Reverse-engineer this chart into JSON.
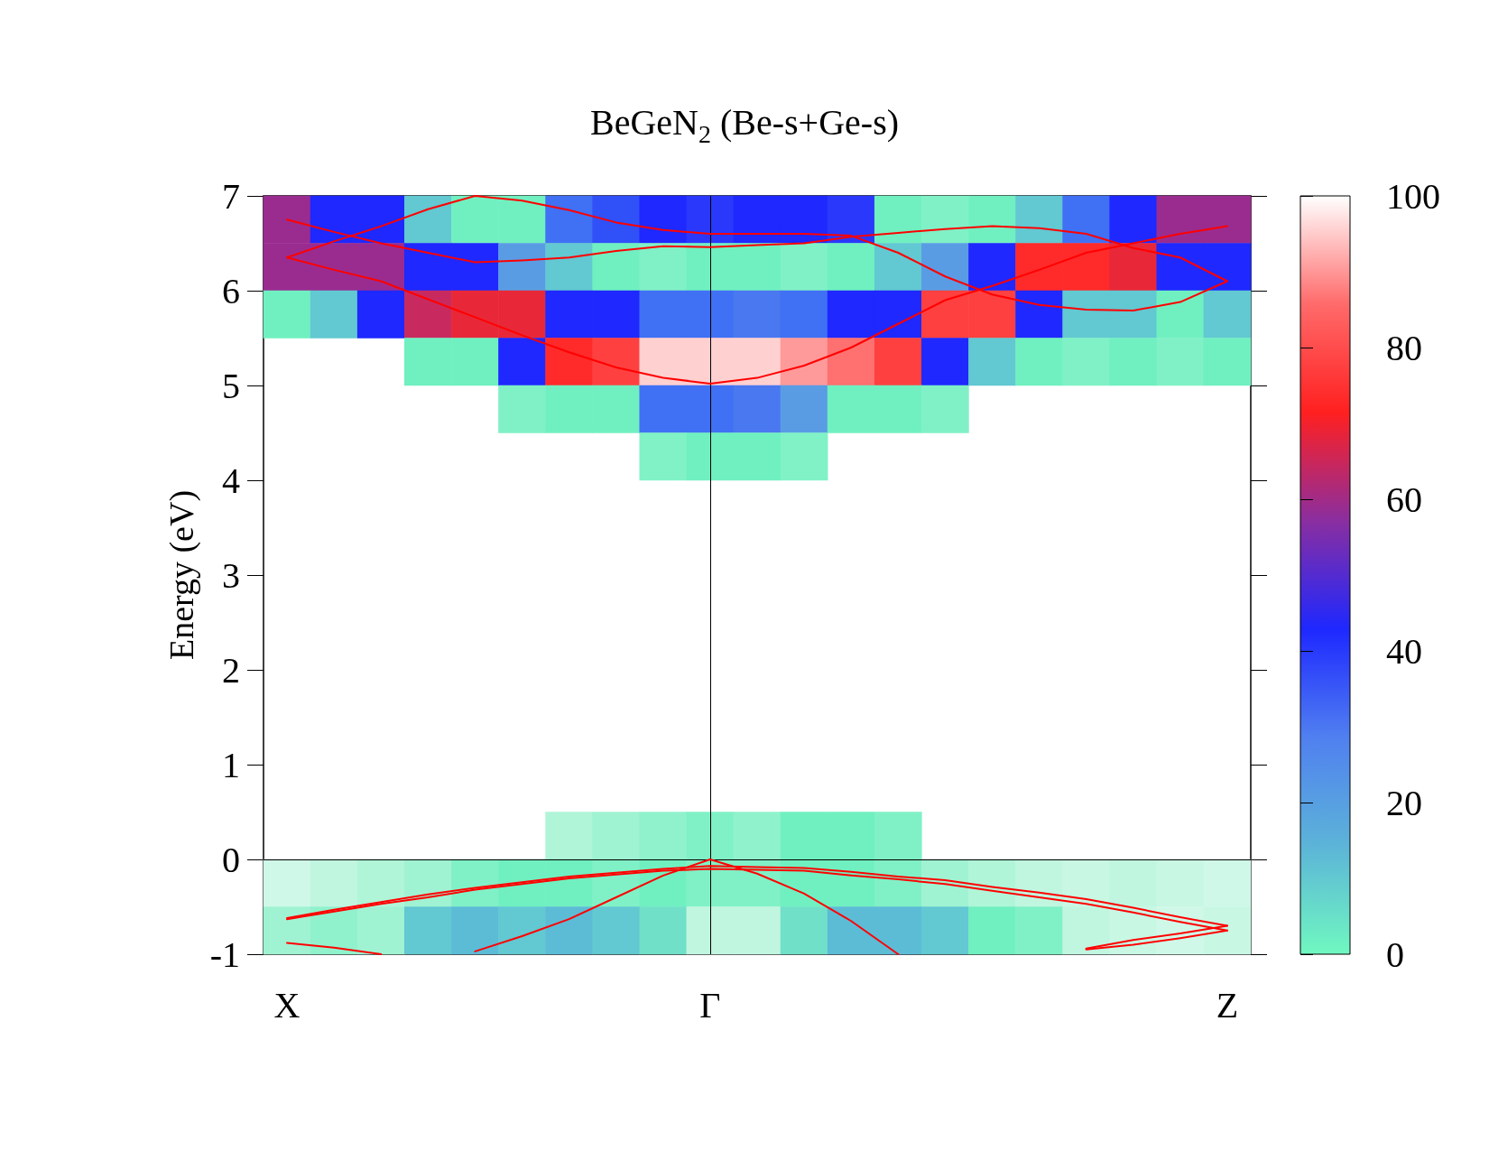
{
  "chart_data": {
    "type": "line",
    "title": "BeGeN$_{2}$ (Be-s+Ge-s)",
    "ylabel": "Energy (eV)",
    "categories": [
      "X",
      null,
      null,
      null,
      null,
      null,
      null,
      null,
      null,
      "Γ",
      null,
      null,
      null,
      null,
      null,
      null,
      null,
      null,
      null,
      null,
      "Z"
    ],
    "ylim": [
      -1,
      7
    ],
    "yticks": [
      -1,
      0,
      1,
      2,
      3,
      4,
      5,
      6,
      7
    ],
    "grid": false,
    "clim": [
      0,
      100
    ],
    "cticks": [
      0,
      20,
      40,
      60,
      80,
      100
    ],
    "ref_lines": [
      {
        "axis": "x",
        "value": "Γ",
        "color": "#000000"
      },
      {
        "axis": "y",
        "value": 0,
        "color": "#000000"
      }
    ],
    "series": [
      {
        "type": "bar",
        "base": [
          6.5,
          6.5,
          6.5,
          6.5,
          6.5,
          6.5,
          6.5,
          6.5,
          6.5,
          6.5,
          6.5,
          6.5,
          6.5,
          6.5,
          6.5,
          6.5,
          6.5,
          6.5,
          6.5,
          6.5,
          6.5
        ],
        "values": [
          0.5,
          0.5,
          0.5,
          0.5,
          0.5,
          0.5,
          0.5,
          0.5,
          0.5,
          0.5,
          0.5,
          0.5,
          0.5,
          0.5,
          0.5,
          0.5,
          0.5,
          0.5,
          0.5,
          0.5,
          0.5
        ],
        "colors": [
          "#9a2c90",
          "#1e28ff",
          "#1e28ff",
          "#62c8d1",
          "#70f0c0",
          "#70f0c0",
          "#4070f4",
          "#3050f8",
          "#1e28ff",
          "#2a38fc",
          "#1e28ff",
          "#1e28ff",
          "#2a38fc",
          "#70f0c0",
          "#80f1c6",
          "#70f0c0",
          "#62c8d1",
          "#4070f4",
          "#1e28ff",
          "#9a2c90",
          "#9a2c90"
        ]
      },
      {
        "type": "bar",
        "base": [
          6,
          6,
          6,
          6,
          6,
          6,
          6,
          6,
          6,
          6,
          6,
          6,
          6,
          6,
          6,
          6,
          6,
          6,
          6,
          6,
          6
        ],
        "values": [
          0.5,
          0.5,
          0.5,
          0.5,
          0.5,
          0.5,
          0.5,
          0.5,
          0.5,
          0.5,
          0.5,
          0.5,
          0.5,
          0.5,
          0.5,
          0.5,
          0.5,
          0.5,
          0.5,
          0.5,
          0.5
        ],
        "colors": [
          "#9a2c90",
          "#9a2c90",
          "#9a2c90",
          "#1e28ff",
          "#1e28ff",
          "#5a9ce4",
          "#62c8d1",
          "#70f0c0",
          "#80f1c6",
          "#70f0c0",
          "#70f0c0",
          "#80f1c6",
          "#70f0c0",
          "#62c8d1",
          "#5a9ce4",
          "#1e28ff",
          "#ff2a2a",
          "#ff2a2a",
          "#e82838",
          "#1e28ff",
          "#1e28ff"
        ]
      },
      {
        "type": "bar",
        "base": [
          5.5,
          5.5,
          5.5,
          5.5,
          5.5,
          5.5,
          5.5,
          5.5,
          5.5,
          5.5,
          5.5,
          5.5,
          5.5,
          5.5,
          5.5,
          5.5,
          5.5,
          5.5,
          5.5,
          5.5,
          5.5
        ],
        "values": [
          0.5,
          0.5,
          0.5,
          0.5,
          0.5,
          0.5,
          0.5,
          0.5,
          0.5,
          0.5,
          0.5,
          0.5,
          0.5,
          0.5,
          0.5,
          0.5,
          0.5,
          0.5,
          0.5,
          0.5,
          0.5
        ],
        "colors": [
          "#70f0c0",
          "#62c8d1",
          "#1e28ff",
          "#c82a60",
          "#e82838",
          "#e82838",
          "#1e28ff",
          "#1e28ff",
          "#4070f4",
          "#4070f4",
          "#4a78f0",
          "#4070f4",
          "#1e28ff",
          "#1e28ff",
          "#ff4040",
          "#ff4040",
          "#1e28ff",
          "#62c8d1",
          "#62c8d1",
          "#70f0c0",
          "#62c8d1"
        ]
      },
      {
        "type": "bar",
        "base": [
          null,
          null,
          null,
          5,
          5,
          5,
          5,
          5,
          5,
          5,
          5,
          5,
          5,
          5,
          5,
          5,
          5,
          5,
          5,
          5,
          5
        ],
        "values": [
          null,
          null,
          null,
          0.5,
          0.5,
          0.5,
          0.5,
          0.5,
          0.5,
          0.5,
          0.5,
          0.5,
          0.5,
          0.5,
          0.5,
          0.5,
          0.5,
          0.5,
          0.5,
          0.5,
          0.5
        ],
        "colors": [
          null,
          null,
          null,
          "#70f0c0",
          "#70f0c0",
          "#1e28ff",
          "#ff2a2a",
          "#ff4040",
          "#ffd0d0",
          "#ffd0d0",
          "#ffd0d0",
          "#ff9a9a",
          "#ff7070",
          "#ff4040",
          "#1e28ff",
          "#62c8d1",
          "#70f0c0",
          "#80f1c6",
          "#70f0c0",
          "#80f1c6",
          "#70f0c0"
        ]
      },
      {
        "type": "bar",
        "base": [
          null,
          null,
          null,
          null,
          null,
          4.5,
          4.5,
          4.5,
          4.5,
          4.5,
          4.5,
          4.5,
          4.5,
          4.5,
          4.5,
          null,
          null,
          null,
          null,
          null,
          null
        ],
        "values": [
          null,
          null,
          null,
          null,
          null,
          0.5,
          0.5,
          0.5,
          0.5,
          0.5,
          0.5,
          0.5,
          0.5,
          0.5,
          0.5,
          null,
          null,
          null,
          null,
          null,
          null
        ],
        "colors": [
          null,
          null,
          null,
          null,
          null,
          "#80f1c6",
          "#70f0c0",
          "#70f0c0",
          "#4070f4",
          "#4070f4",
          "#4a78f0",
          "#5a9ce4",
          "#70f0c0",
          "#70f0c0",
          "#80f1c6",
          null,
          null,
          null,
          null,
          null,
          null
        ]
      },
      {
        "type": "bar",
        "base": [
          null,
          null,
          null,
          null,
          null,
          null,
          null,
          null,
          4,
          4,
          4,
          4,
          null,
          null,
          null,
          null,
          null,
          null,
          null,
          null,
          null
        ],
        "values": [
          null,
          null,
          null,
          null,
          null,
          null,
          null,
          null,
          0.5,
          0.5,
          0.5,
          0.5,
          null,
          null,
          null,
          null,
          null,
          null,
          null,
          null,
          null
        ],
        "colors": [
          null,
          null,
          null,
          null,
          null,
          null,
          null,
          null,
          "#80f2c6",
          "#70f0c0",
          "#70f0c0",
          "#80f2c6",
          null,
          null,
          null,
          null,
          null,
          null,
          null,
          null,
          null
        ]
      },
      {
        "type": "bar",
        "base": [
          null,
          null,
          null,
          null,
          null,
          null,
          0,
          0,
          0,
          0,
          0,
          0,
          0,
          0,
          null,
          null,
          null,
          null,
          null,
          null,
          null
        ],
        "values": [
          null,
          null,
          null,
          null,
          null,
          null,
          0.5,
          0.5,
          0.5,
          0.5,
          0.5,
          0.5,
          0.5,
          0.5,
          null,
          null,
          null,
          null,
          null,
          null,
          null
        ],
        "colors": [
          null,
          null,
          null,
          null,
          null,
          null,
          "#b0f5d8",
          "#a0f3d2",
          "#90f2cc",
          "#80f1c6",
          "#90f2cc",
          "#70f0c0",
          "#70f0c0",
          "#80f1c6",
          null,
          null,
          null,
          null,
          null,
          null,
          null
        ]
      },
      {
        "type": "bar",
        "base": [
          -0.5,
          -0.5,
          -0.5,
          -0.5,
          -0.5,
          -0.5,
          -0.5,
          -0.5,
          -0.5,
          -0.5,
          -0.5,
          -0.5,
          -0.5,
          -0.5,
          -0.5,
          -0.5,
          -0.5,
          -0.5,
          -0.5,
          -0.5,
          -0.5
        ],
        "values": [
          0.5,
          0.5,
          0.5,
          0.5,
          0.5,
          0.5,
          0.5,
          0.5,
          0.5,
          0.5,
          0.5,
          0.5,
          0.5,
          0.5,
          0.5,
          0.5,
          0.5,
          0.5,
          0.5,
          0.5,
          0.5
        ],
        "colors": [
          "#d0f8e8",
          "#c0f6e0",
          "#b0f5d8",
          "#a0f3d2",
          "#80f1c6",
          "#70f0c0",
          "#70f0c0",
          "#80f1c6",
          "#70f0c0",
          "#80f1c6",
          "#80f1c6",
          "#70f0c0",
          "#70f0c0",
          "#80f1c6",
          "#a0f3d2",
          "#b0f5d8",
          "#c0f6e0",
          "#c8f7e4",
          "#c0f6e0",
          "#c8f7e4",
          "#d0f8e8"
        ]
      },
      {
        "type": "bar",
        "base": [
          -1,
          -1,
          -1,
          -1,
          -1,
          -1,
          -1,
          -1,
          -1,
          -1,
          -1,
          -1,
          -1,
          -1,
          -1,
          -1,
          -1,
          -1,
          -1,
          -1,
          -1
        ],
        "values": [
          0.5,
          0.5,
          0.5,
          0.5,
          0.5,
          0.5,
          0.5,
          0.5,
          0.5,
          0.5,
          0.5,
          0.5,
          0.5,
          0.5,
          0.5,
          0.5,
          0.5,
          0.5,
          0.5,
          0.5,
          0.5
        ],
        "colors": [
          "#a0f3d2",
          "#90f2cc",
          "#a0f3d2",
          "#62c8d1",
          "#5cbcd6",
          "#62c8d1",
          "#5cbcd6",
          "#62c8d1",
          "#70e0c8",
          "#c0f6e0",
          "#c0f6e0",
          "#70e0c8",
          "#5cbcd6",
          "#5cbcd6",
          "#62c8d1",
          "#70f0c0",
          "#80f1c6",
          "#c0f6e0",
          "#c8f7e4",
          "#d0f8e8",
          "#c8f7e4"
        ]
      },
      {
        "color": "#ff0000",
        "values": [
          6.35,
          6.22,
          6.1,
          5.91,
          5.72,
          5.53,
          5.35,
          5.19,
          5.08,
          5.02,
          5.08,
          5.21,
          5.4,
          5.65,
          5.9,
          6.05,
          6.22,
          6.4,
          6.5,
          6.6,
          6.68
        ]
      },
      {
        "color": "#ff0000",
        "values": [
          6.75,
          6.62,
          6.5,
          6.4,
          6.3,
          6.32,
          6.35,
          6.42,
          6.47,
          6.46,
          6.48,
          6.5,
          6.57,
          6.61,
          6.65,
          6.68,
          6.66,
          6.6,
          6.45,
          6.35,
          6.1
        ]
      },
      {
        "color": "#ff0000",
        "values": [
          6.35,
          6.52,
          6.68,
          6.86,
          7,
          6.95,
          6.85,
          6.72,
          6.64,
          6.6,
          6.6,
          6.6,
          6.58,
          6.4,
          6.15,
          5.96,
          5.85,
          5.8,
          5.79,
          5.88,
          6.1
        ]
      },
      {
        "color": "#ff0000",
        "values": [
          -0.62,
          -0.53,
          -0.45,
          -0.37,
          -0.3,
          -0.24,
          -0.18,
          -0.14,
          -0.1,
          -0.07,
          -0.08,
          -0.09,
          -0.13,
          -0.18,
          -0.22,
          -0.29,
          -0.35,
          -0.42,
          -0.51,
          -0.61,
          -0.7
        ]
      },
      {
        "color": "#ff0000",
        "values": [
          -0.63,
          -0.55,
          -0.47,
          -0.4,
          -0.32,
          -0.26,
          -0.2,
          -0.16,
          -0.12,
          -0.1,
          -0.11,
          -0.12,
          -0.17,
          -0.21,
          -0.26,
          -0.33,
          -0.4,
          -0.47,
          -0.56,
          -0.66,
          -0.75
        ]
      },
      {
        "color": "#ff0000",
        "values": [
          null,
          null,
          null,
          null,
          -0.97,
          -0.81,
          -0.63,
          -0.4,
          -0.17,
          0,
          -0.15,
          -0.36,
          -0.65,
          -1,
          null,
          null,
          null,
          null,
          null,
          null,
          null
        ]
      },
      {
        "color": "#ff0000",
        "values": [
          null,
          null,
          null,
          null,
          null,
          null,
          null,
          null,
          null,
          null,
          null,
          null,
          null,
          null,
          null,
          null,
          null,
          -0.94,
          -0.85,
          -0.78,
          -0.7
        ]
      },
      {
        "color": "#ff0000",
        "values": [
          null,
          null,
          null,
          null,
          null,
          null,
          null,
          null,
          null,
          null,
          null,
          null,
          null,
          null,
          null,
          null,
          null,
          -0.95,
          -0.9,
          -0.83,
          -0.75
        ]
      },
      {
        "color": "#ff0000",
        "values": [
          -0.88,
          -0.93,
          -1,
          null,
          null,
          null,
          null,
          null,
          null,
          null,
          null,
          null,
          null,
          null,
          null,
          null,
          null,
          null,
          null,
          null,
          null
        ]
      }
    ]
  }
}
